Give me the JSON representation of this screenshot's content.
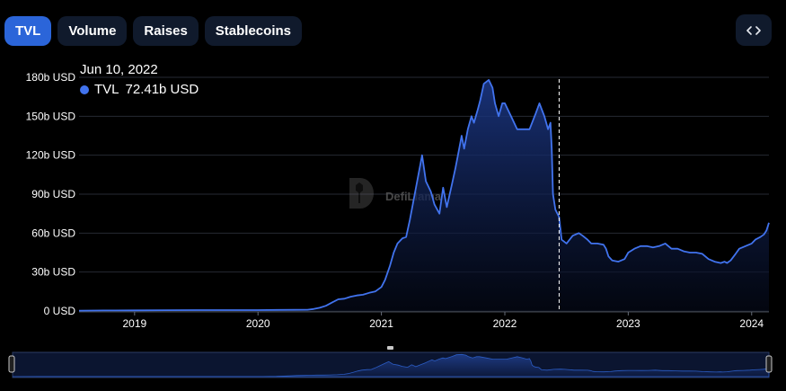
{
  "tabs": [
    {
      "label": "TVL",
      "active": true
    },
    {
      "label": "Volume",
      "active": false
    },
    {
      "label": "Raises",
      "active": false
    },
    {
      "label": "Stablecoins",
      "active": false
    }
  ],
  "embed_button": {
    "icon": "code-brackets-icon"
  },
  "tooltip": {
    "date": "Jun 10, 2022",
    "series": "TVL",
    "value": "72.41b USD"
  },
  "watermark": {
    "text": "DefiLlama"
  },
  "colors": {
    "accent": "#2b65d9",
    "line": "#4173ee",
    "tab_bg": "#101a2c",
    "background": "#000000"
  },
  "chart_data": {
    "type": "area",
    "title": "",
    "xlabel": "",
    "ylabel": "",
    "ylim": [
      0,
      180
    ],
    "y_ticks": [
      0,
      30,
      60,
      90,
      120,
      150,
      180
    ],
    "y_tick_labels": [
      "0 USD",
      "30b USD",
      "60b USD",
      "90b USD",
      "120b USD",
      "150b USD",
      "180b USD"
    ],
    "x_ticks": [
      2019,
      2020,
      2021,
      2022,
      2023,
      2024
    ],
    "x_tick_labels": [
      "2019",
      "2020",
      "2021",
      "2022",
      "2023",
      "2024"
    ],
    "xlim": [
      2018.55,
      2024.14
    ],
    "grid": true,
    "crosshair_x": 2022.44,
    "series": [
      {
        "name": "TVL",
        "unit": "b USD",
        "points": [
          [
            2018.55,
            0.3
          ],
          [
            2018.75,
            0.4
          ],
          [
            2019.0,
            0.5
          ],
          [
            2019.25,
            0.6
          ],
          [
            2019.5,
            0.7
          ],
          [
            2019.75,
            0.7
          ],
          [
            2020.0,
            0.7
          ],
          [
            2020.15,
            0.8
          ],
          [
            2020.3,
            0.9
          ],
          [
            2020.4,
            1.0
          ],
          [
            2020.45,
            1.5
          ],
          [
            2020.5,
            2.5
          ],
          [
            2020.55,
            4.0
          ],
          [
            2020.6,
            6.5
          ],
          [
            2020.65,
            9.0
          ],
          [
            2020.7,
            9.5
          ],
          [
            2020.75,
            11.0
          ],
          [
            2020.8,
            12.0
          ],
          [
            2020.85,
            12.5
          ],
          [
            2020.9,
            14.0
          ],
          [
            2020.95,
            15.0
          ],
          [
            2021.0,
            18.5
          ],
          [
            2021.03,
            24.0
          ],
          [
            2021.07,
            35.0
          ],
          [
            2021.1,
            45.0
          ],
          [
            2021.13,
            52.0
          ],
          [
            2021.17,
            56.0
          ],
          [
            2021.2,
            57.0
          ],
          [
            2021.23,
            70.0
          ],
          [
            2021.27,
            90.0
          ],
          [
            2021.3,
            105.0
          ],
          [
            2021.33,
            120.0
          ],
          [
            2021.36,
            100.0
          ],
          [
            2021.4,
            92.0
          ],
          [
            2021.43,
            82.0
          ],
          [
            2021.47,
            75.0
          ],
          [
            2021.5,
            95.0
          ],
          [
            2021.53,
            80.0
          ],
          [
            2021.57,
            97.0
          ],
          [
            2021.6,
            110.0
          ],
          [
            2021.62,
            120.0
          ],
          [
            2021.65,
            135.0
          ],
          [
            2021.67,
            125.0
          ],
          [
            2021.7,
            140.0
          ],
          [
            2021.73,
            150.0
          ],
          [
            2021.75,
            145.0
          ],
          [
            2021.78,
            155.0
          ],
          [
            2021.8,
            162.0
          ],
          [
            2021.83,
            175.0
          ],
          [
            2021.87,
            178.0
          ],
          [
            2021.9,
            172.0
          ],
          [
            2021.92,
            160.0
          ],
          [
            2021.95,
            150.0
          ],
          [
            2021.98,
            160.0
          ],
          [
            2022.0,
            160.0
          ],
          [
            2022.05,
            150.0
          ],
          [
            2022.1,
            140.0
          ],
          [
            2022.15,
            140.0
          ],
          [
            2022.2,
            140.0
          ],
          [
            2022.25,
            152.0
          ],
          [
            2022.28,
            160.0
          ],
          [
            2022.32,
            150.0
          ],
          [
            2022.35,
            140.0
          ],
          [
            2022.37,
            145.0
          ],
          [
            2022.38,
            125.0
          ],
          [
            2022.39,
            90.0
          ],
          [
            2022.41,
            78.0
          ],
          [
            2022.44,
            72.4
          ],
          [
            2022.46,
            55.0
          ],
          [
            2022.5,
            52.0
          ],
          [
            2022.55,
            58.0
          ],
          [
            2022.6,
            60.0
          ],
          [
            2022.63,
            58.0
          ],
          [
            2022.67,
            55.0
          ],
          [
            2022.7,
            52.0
          ],
          [
            2022.75,
            52.0
          ],
          [
            2022.8,
            51.0
          ],
          [
            2022.82,
            48.0
          ],
          [
            2022.84,
            42.0
          ],
          [
            2022.87,
            39.0
          ],
          [
            2022.92,
            38.0
          ],
          [
            2022.97,
            40.0
          ],
          [
            2023.0,
            45.0
          ],
          [
            2023.05,
            48.0
          ],
          [
            2023.1,
            50.0
          ],
          [
            2023.15,
            50.0
          ],
          [
            2023.2,
            49.0
          ],
          [
            2023.25,
            50.0
          ],
          [
            2023.3,
            52.0
          ],
          [
            2023.35,
            48.0
          ],
          [
            2023.4,
            48.0
          ],
          [
            2023.45,
            46.0
          ],
          [
            2023.5,
            45.0
          ],
          [
            2023.55,
            45.0
          ],
          [
            2023.6,
            44.0
          ],
          [
            2023.65,
            40.0
          ],
          [
            2023.7,
            38.0
          ],
          [
            2023.75,
            37.0
          ],
          [
            2023.78,
            38.0
          ],
          [
            2023.8,
            37.0
          ],
          [
            2023.83,
            39.0
          ],
          [
            2023.87,
            44.0
          ],
          [
            2023.9,
            48.0
          ],
          [
            2023.95,
            50.0
          ],
          [
            2024.0,
            52.0
          ],
          [
            2024.03,
            55.0
          ],
          [
            2024.07,
            57.0
          ],
          [
            2024.1,
            59.0
          ],
          [
            2024.12,
            62.0
          ],
          [
            2024.14,
            68.0
          ]
        ]
      }
    ]
  }
}
